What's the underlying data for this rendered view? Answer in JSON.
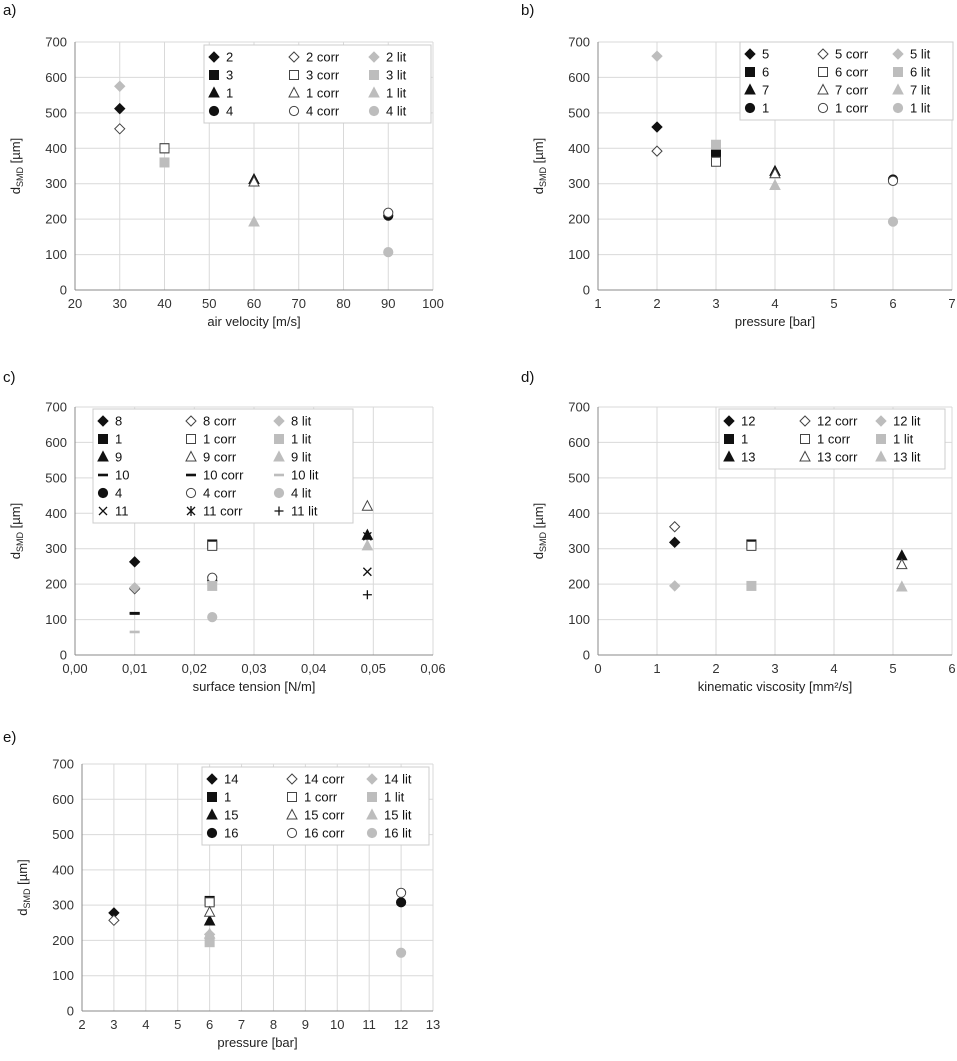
{
  "styles": {
    "main": {
      "fill": "#111111",
      "stroke": "#111111"
    },
    "corr": {
      "fill": "#ffffff",
      "stroke": "#444444"
    },
    "lit": {
      "fill": "#bdbdbd",
      "stroke": "#bdbdbd"
    }
  },
  "chart_data": [
    {
      "panel": "a)",
      "type": "scatter",
      "xlabel": "air velocity [m/s]",
      "ylabel": "d",
      "ylabel_sub": "SMD",
      "ylabel_unit": " [µm]",
      "xlim": [
        20,
        100
      ],
      "xticks": [
        20,
        30,
        40,
        50,
        60,
        70,
        80,
        90,
        100
      ],
      "ylim": [
        0,
        700
      ],
      "yticks": [
        0,
        100,
        200,
        300,
        400,
        500,
        600,
        700
      ],
      "decimal_comma": false,
      "legend_cols": 3,
      "series": [
        {
          "name": "2",
          "marker": "diamond",
          "style": "main",
          "points": [
            [
              30,
              512
            ]
          ]
        },
        {
          "name": "3",
          "marker": "square",
          "style": "main",
          "points": [
            [
              40,
              400
            ]
          ]
        },
        {
          "name": "1",
          "marker": "triangle",
          "style": "main",
          "points": [
            [
              60,
              312
            ]
          ]
        },
        {
          "name": "4",
          "marker": "circle",
          "style": "main",
          "points": [
            [
              90,
              210
            ]
          ]
        },
        {
          "name": "2 corr",
          "marker": "diamond",
          "style": "corr",
          "points": [
            [
              30,
              455
            ]
          ]
        },
        {
          "name": "3 corr",
          "marker": "square",
          "style": "corr",
          "points": [
            [
              40,
              400
            ]
          ]
        },
        {
          "name": "1 corr",
          "marker": "triangle",
          "style": "corr",
          "points": [
            [
              60,
              305
            ]
          ]
        },
        {
          "name": "4 corr",
          "marker": "circle",
          "style": "corr",
          "points": [
            [
              90,
              218
            ]
          ]
        },
        {
          "name": "2 lit",
          "marker": "diamond",
          "style": "lit",
          "points": [
            [
              30,
              575
            ]
          ]
        },
        {
          "name": "3 lit",
          "marker": "square",
          "style": "lit",
          "points": [
            [
              40,
              360
            ]
          ]
        },
        {
          "name": "1 lit",
          "marker": "triangle",
          "style": "lit",
          "points": [
            [
              60,
              192
            ]
          ]
        },
        {
          "name": "4 lit",
          "marker": "circle",
          "style": "lit",
          "points": [
            [
              90,
              107
            ]
          ]
        }
      ]
    },
    {
      "panel": "b)",
      "type": "scatter",
      "xlabel": "pressure [bar]",
      "ylabel": "d",
      "ylabel_sub": "SMD",
      "ylabel_unit": " [µm]",
      "xlim": [
        1,
        7
      ],
      "xticks": [
        1,
        2,
        3,
        4,
        5,
        6,
        7
      ],
      "ylim": [
        0,
        700
      ],
      "yticks": [
        0,
        100,
        200,
        300,
        400,
        500,
        600,
        700
      ],
      "decimal_comma": false,
      "legend_cols": 3,
      "series": [
        {
          "name": "5",
          "marker": "diamond",
          "style": "main",
          "points": [
            [
              2,
              460
            ]
          ]
        },
        {
          "name": "6",
          "marker": "square",
          "style": "main",
          "points": [
            [
              3,
              385
            ]
          ]
        },
        {
          "name": "7",
          "marker": "triangle",
          "style": "main",
          "points": [
            [
              4,
              335
            ]
          ]
        },
        {
          "name": "1",
          "marker": "circle",
          "style": "main",
          "points": [
            [
              6,
              312
            ]
          ]
        },
        {
          "name": "5 corr",
          "marker": "diamond",
          "style": "corr",
          "points": [
            [
              2,
              392
            ]
          ]
        },
        {
          "name": "6 corr",
          "marker": "square",
          "style": "corr",
          "points": [
            [
              3,
              362
            ]
          ]
        },
        {
          "name": "7 corr",
          "marker": "triangle",
          "style": "corr",
          "points": [
            [
              4,
              328
            ]
          ]
        },
        {
          "name": "1 corr",
          "marker": "circle",
          "style": "corr",
          "points": [
            [
              6,
              308
            ]
          ]
        },
        {
          "name": "5 lit",
          "marker": "diamond",
          "style": "lit",
          "points": [
            [
              2,
              660
            ]
          ]
        },
        {
          "name": "6 lit",
          "marker": "square",
          "style": "lit",
          "points": [
            [
              3,
              410
            ]
          ]
        },
        {
          "name": "7 lit",
          "marker": "triangle",
          "style": "lit",
          "points": [
            [
              4,
              295
            ]
          ]
        },
        {
          "name": "1 lit",
          "marker": "circle",
          "style": "lit",
          "points": [
            [
              6,
              193
            ]
          ]
        }
      ]
    },
    {
      "panel": "c)",
      "type": "scatter",
      "xlabel": "surface tension [N/m]",
      "ylabel": "d",
      "ylabel_sub": "SMD",
      "ylabel_unit": " [µm]",
      "xlim": [
        0,
        0.06
      ],
      "xticks": [
        0,
        0.01,
        0.02,
        0.03,
        0.04,
        0.05,
        0.06
      ],
      "ylim": [
        0,
        700
      ],
      "yticks": [
        0,
        100,
        200,
        300,
        400,
        500,
        600,
        700
      ],
      "decimal_comma": true,
      "legend_cols": 3,
      "series": [
        {
          "name": "8",
          "marker": "diamond",
          "style": "main",
          "points": [
            [
              0.01,
              263
            ]
          ]
        },
        {
          "name": "1",
          "marker": "square",
          "style": "main",
          "points": [
            [
              0.023,
              312
            ]
          ]
        },
        {
          "name": "9",
          "marker": "triangle",
          "style": "main",
          "points": [
            [
              0.049,
              338
            ]
          ]
        },
        {
          "name": "10",
          "marker": "dash",
          "style": "main",
          "points": [
            [
              0.01,
              117
            ]
          ]
        },
        {
          "name": "4",
          "marker": "circle",
          "style": "main",
          "points": [
            [
              0.023,
              210
            ]
          ]
        },
        {
          "name": "11",
          "marker": "x",
          "style": "main",
          "points": [
            [
              0.049,
              235
            ]
          ]
        },
        {
          "name": "8 corr",
          "marker": "diamond",
          "style": "corr",
          "points": [
            [
              0.01,
              187
            ]
          ]
        },
        {
          "name": "1 corr",
          "marker": "square",
          "style": "corr",
          "points": [
            [
              0.023,
              308
            ]
          ]
        },
        {
          "name": "9 corr",
          "marker": "triangle",
          "style": "corr",
          "points": [
            [
              0.049,
              420
            ]
          ]
        },
        {
          "name": "10 corr",
          "marker": "dash",
          "style": "main",
          "points": [
            [
              0.01,
              118
            ]
          ]
        },
        {
          "name": "4 corr",
          "marker": "circle",
          "style": "corr",
          "points": [
            [
              0.023,
              218
            ]
          ]
        },
        {
          "name": "11 corr",
          "marker": "star",
          "style": "main",
          "points": [
            [
              0.049,
              335
            ]
          ]
        },
        {
          "name": "8 lit",
          "marker": "diamond",
          "style": "lit",
          "points": [
            [
              0.01,
              190
            ]
          ]
        },
        {
          "name": "1 lit",
          "marker": "square",
          "style": "lit",
          "points": [
            [
              0.023,
              195
            ]
          ]
        },
        {
          "name": "9 lit",
          "marker": "triangle",
          "style": "lit",
          "points": [
            [
              0.049,
              308
            ]
          ]
        },
        {
          "name": "10 lit",
          "marker": "dash",
          "style": "lit",
          "points": [
            [
              0.01,
              65
            ]
          ]
        },
        {
          "name": "4 lit",
          "marker": "circle",
          "style": "lit",
          "points": [
            [
              0.023,
              107
            ]
          ]
        },
        {
          "name": "11 lit",
          "marker": "plus",
          "style": "main",
          "points": [
            [
              0.049,
              170
            ]
          ]
        }
      ]
    },
    {
      "panel": "d)",
      "type": "scatter",
      "xlabel": "kinematic viscosity [mm²/s]",
      "ylabel": "d",
      "ylabel_sub": "SMD",
      "ylabel_unit": " [µm]",
      "xlim": [
        0,
        6
      ],
      "xticks": [
        0,
        1,
        2,
        3,
        4,
        5,
        6
      ],
      "ylim": [
        0,
        700
      ],
      "yticks": [
        0,
        100,
        200,
        300,
        400,
        500,
        600,
        700
      ],
      "decimal_comma": false,
      "legend_cols": 3,
      "series": [
        {
          "name": "12",
          "marker": "diamond",
          "style": "main",
          "points": [
            [
              1.3,
              318
            ]
          ]
        },
        {
          "name": "1",
          "marker": "square",
          "style": "main",
          "points": [
            [
              2.6,
              312
            ]
          ]
        },
        {
          "name": "13",
          "marker": "triangle",
          "style": "main",
          "points": [
            [
              5.15,
              280
            ]
          ]
        },
        {
          "name": "12 corr",
          "marker": "diamond",
          "style": "corr",
          "points": [
            [
              1.3,
              362
            ]
          ]
        },
        {
          "name": "1 corr",
          "marker": "square",
          "style": "corr",
          "points": [
            [
              2.6,
              308
            ]
          ]
        },
        {
          "name": "13 corr",
          "marker": "triangle",
          "style": "corr",
          "points": [
            [
              5.15,
              255
            ]
          ]
        },
        {
          "name": "12 lit",
          "marker": "diamond",
          "style": "lit",
          "points": [
            [
              1.3,
              195
            ]
          ]
        },
        {
          "name": "1 lit",
          "marker": "square",
          "style": "lit",
          "points": [
            [
              2.6,
              195
            ]
          ]
        },
        {
          "name": "13 lit",
          "marker": "triangle",
          "style": "lit",
          "points": [
            [
              5.15,
              192
            ]
          ]
        }
      ]
    },
    {
      "panel": "e)",
      "type": "scatter",
      "xlabel": "pressure [bar]",
      "ylabel": "d",
      "ylabel_sub": "SMD",
      "ylabel_unit": " [µm]",
      "xlim": [
        2,
        13
      ],
      "xticks": [
        2,
        3,
        4,
        5,
        6,
        7,
        8,
        9,
        10,
        11,
        12,
        13
      ],
      "ylim": [
        0,
        700
      ],
      "yticks": [
        0,
        100,
        200,
        300,
        400,
        500,
        600,
        700
      ],
      "decimal_comma": false,
      "legend_cols": 3,
      "series": [
        {
          "name": "14",
          "marker": "diamond",
          "style": "main",
          "points": [
            [
              3,
              278
            ]
          ]
        },
        {
          "name": "1",
          "marker": "square",
          "style": "main",
          "points": [
            [
              6,
              312
            ]
          ]
        },
        {
          "name": "15",
          "marker": "triangle",
          "style": "main",
          "points": [
            [
              6,
              255
            ]
          ]
        },
        {
          "name": "16",
          "marker": "circle",
          "style": "main",
          "points": [
            [
              12,
              308
            ]
          ]
        },
        {
          "name": "14 corr",
          "marker": "diamond",
          "style": "corr",
          "points": [
            [
              3,
              257
            ]
          ]
        },
        {
          "name": "1 corr",
          "marker": "square",
          "style": "corr",
          "points": [
            [
              6,
              308
            ]
          ]
        },
        {
          "name": "15 corr",
          "marker": "triangle",
          "style": "corr",
          "points": [
            [
              6,
              280
            ]
          ]
        },
        {
          "name": "16 corr",
          "marker": "circle",
          "style": "corr",
          "points": [
            [
              12,
              335
            ]
          ]
        },
        {
          "name": "14 lit",
          "marker": "diamond",
          "style": "lit",
          "points": [
            [
              6,
              217
            ]
          ]
        },
        {
          "name": "1 lit",
          "marker": "square",
          "style": "lit",
          "points": [
            [
              6,
              195
            ]
          ]
        },
        {
          "name": "15 lit",
          "marker": "triangle",
          "style": "lit",
          "points": [
            [
              6,
              218
            ]
          ]
        },
        {
          "name": "16 lit",
          "marker": "circle",
          "style": "lit",
          "points": [
            [
              12,
              165
            ]
          ]
        }
      ]
    }
  ]
}
